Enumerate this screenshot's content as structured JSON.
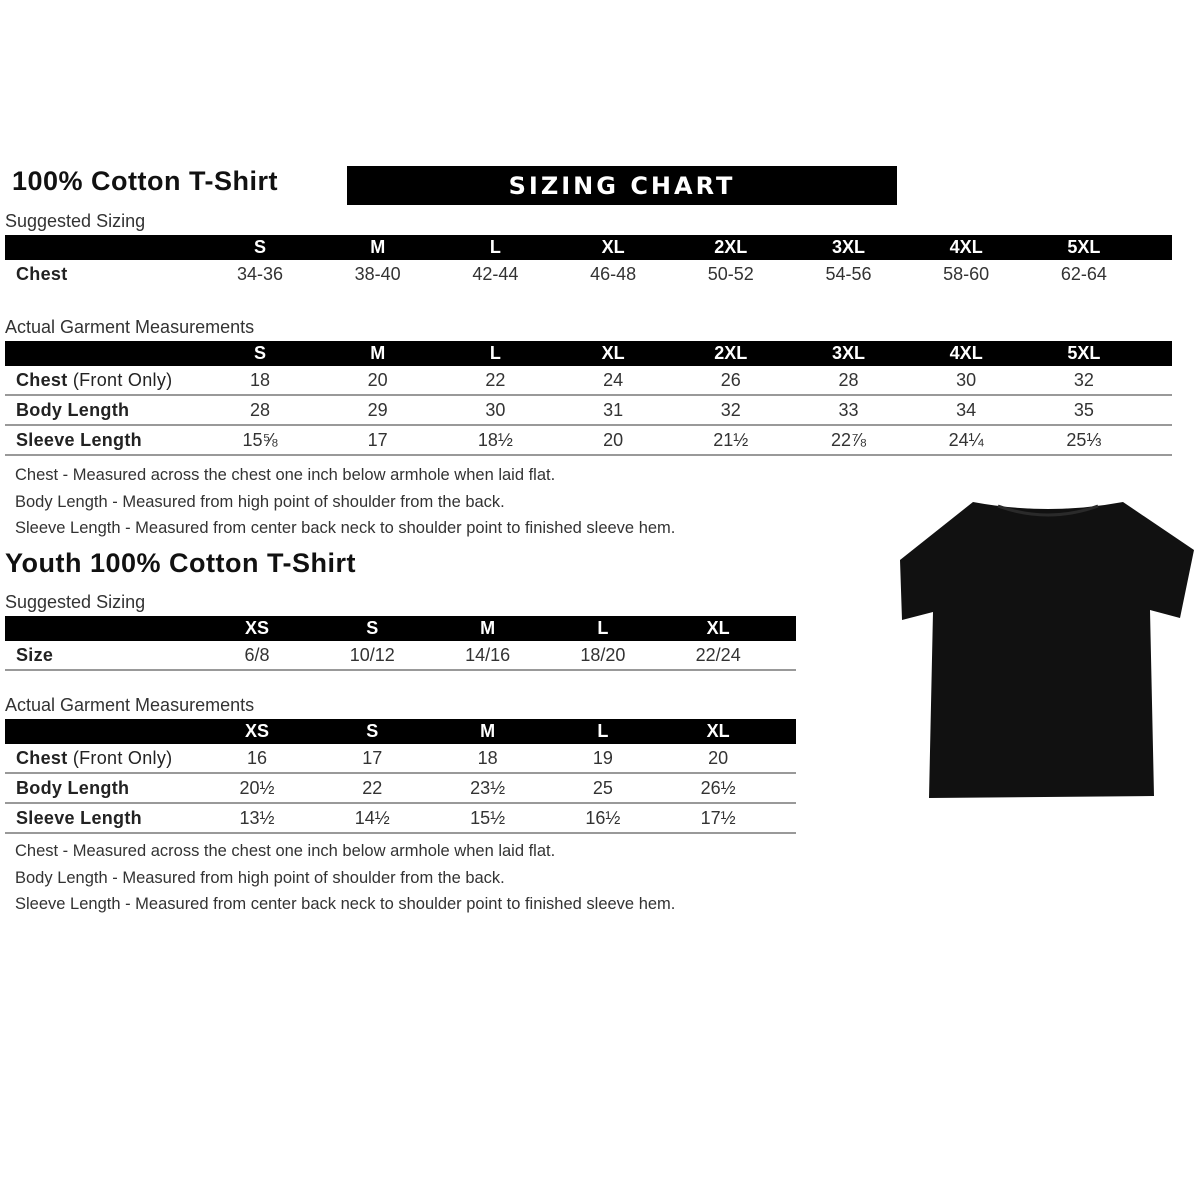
{
  "adult": {
    "title": "100% Cotton T-Shirt",
    "banner": "SIZING CHART",
    "suggested_label": "Suggested Sizing",
    "sizes": [
      "S",
      "M",
      "L",
      "XL",
      "2XL",
      "3XL",
      "4XL",
      "5XL"
    ],
    "suggested_rows": [
      {
        "label": "Chest",
        "values": [
          "34-36",
          "38-40",
          "42-44",
          "46-48",
          "50-52",
          "54-56",
          "58-60",
          "62-64"
        ]
      }
    ],
    "actual_label": "Actual Garment Measurements",
    "actual_rows": [
      {
        "label": "Chest",
        "label_extra": " (Front Only)",
        "values": [
          "18",
          "20",
          "22",
          "24",
          "26",
          "28",
          "30",
          "32"
        ]
      },
      {
        "label": "Body Length",
        "values": [
          "28",
          "29",
          "30",
          "31",
          "32",
          "33",
          "34",
          "35"
        ]
      },
      {
        "label": "Sleeve Length",
        "values": [
          "15⅝",
          "17",
          "18½",
          "20",
          "21½",
          "22⅞",
          "24¼",
          "25⅓"
        ]
      }
    ],
    "notes": [
      "Chest - Measured across the chest one inch below armhole when laid flat.",
      "Body Length - Measured from high point of shoulder from the back.",
      "Sleeve Length - Measured from center back neck to shoulder point to finished sleeve hem."
    ]
  },
  "youth": {
    "title": "Youth 100% Cotton T-Shirt",
    "suggested_label": "Suggested Sizing",
    "sizes": [
      "XS",
      "S",
      "M",
      "L",
      "XL"
    ],
    "suggested_rows": [
      {
        "label": "Size",
        "values": [
          "6/8",
          "10/12",
          "14/16",
          "18/20",
          "22/24"
        ]
      }
    ],
    "actual_label": "Actual Garment Measurements",
    "actual_rows": [
      {
        "label": "Chest",
        "label_extra": " (Front Only)",
        "values": [
          "16",
          "17",
          "18",
          "19",
          "20"
        ]
      },
      {
        "label": "Body Length",
        "values": [
          "20½",
          "22",
          "23½",
          "25",
          "26½"
        ]
      },
      {
        "label": "Sleeve Length",
        "values": [
          "13½",
          "14½",
          "15½",
          "16½",
          "17½"
        ]
      }
    ],
    "notes": [
      "Chest - Measured across the chest one inch below armhole when laid flat.",
      "Body Length - Measured from high point of shoulder from the back.",
      "Sleeve Length - Measured from center back neck to shoulder point to finished sleeve hem."
    ]
  },
  "image": {
    "icon": "black-t-shirt",
    "color": "#111111"
  }
}
